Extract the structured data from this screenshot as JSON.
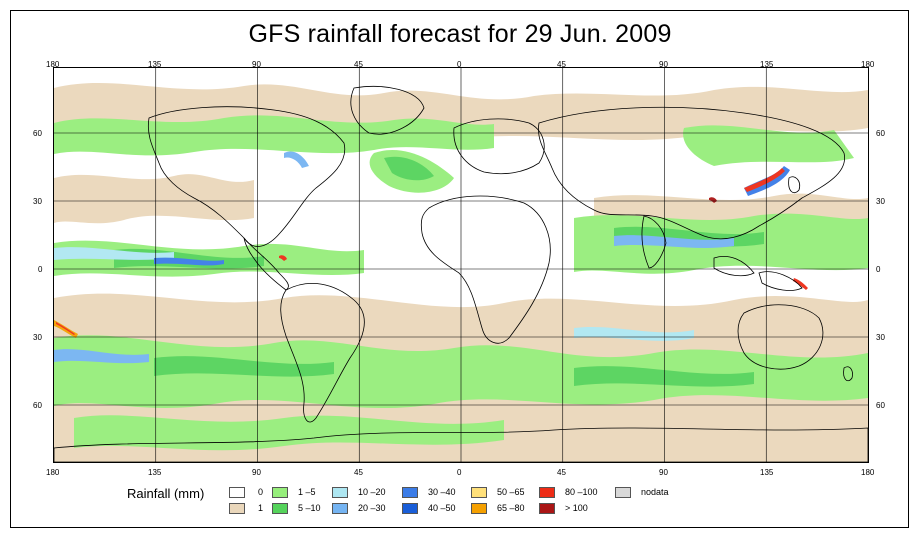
{
  "map": {
    "title": "GFS rainfall forecast for 29 Jun. 2009",
    "longitude_ticks_top": [
      "180",
      "135",
      "90",
      "45",
      "0",
      "45",
      "90",
      "135",
      "180"
    ],
    "longitude_ticks_bottom": [
      "180",
      "135",
      "90",
      "45",
      "0",
      "45",
      "90",
      "135",
      "180"
    ],
    "latitude_ticks_left": [
      "60",
      "30",
      "0",
      "30",
      "60"
    ],
    "latitude_ticks_right": [
      "60",
      "30",
      "0",
      "30",
      "60"
    ]
  },
  "legend": {
    "title": "Rainfall (mm)",
    "items": [
      {
        "label": "0",
        "color": "#ffffff"
      },
      {
        "label": "1",
        "color": "#ead7bb"
      },
      {
        "label": "1 –5",
        "color": "#96ee7b"
      },
      {
        "label": "5 –10",
        "color": "#55d35b"
      },
      {
        "label": "10 –20",
        "color": "#aee7f2"
      },
      {
        "label": "20 –30",
        "color": "#75b4f2"
      },
      {
        "label": "30 –40",
        "color": "#3b7ce7"
      },
      {
        "label": "40 –50",
        "color": "#195ed8"
      },
      {
        "label": "50 –65",
        "color": "#ffe07a"
      },
      {
        "label": "65 –80",
        "color": "#f5a000"
      },
      {
        "label": "80 –100",
        "color": "#ee2c16"
      },
      {
        "label": "> 100",
        "color": "#aa1515"
      },
      {
        "label": "nodata",
        "color": "#d8d8d8"
      }
    ]
  }
}
